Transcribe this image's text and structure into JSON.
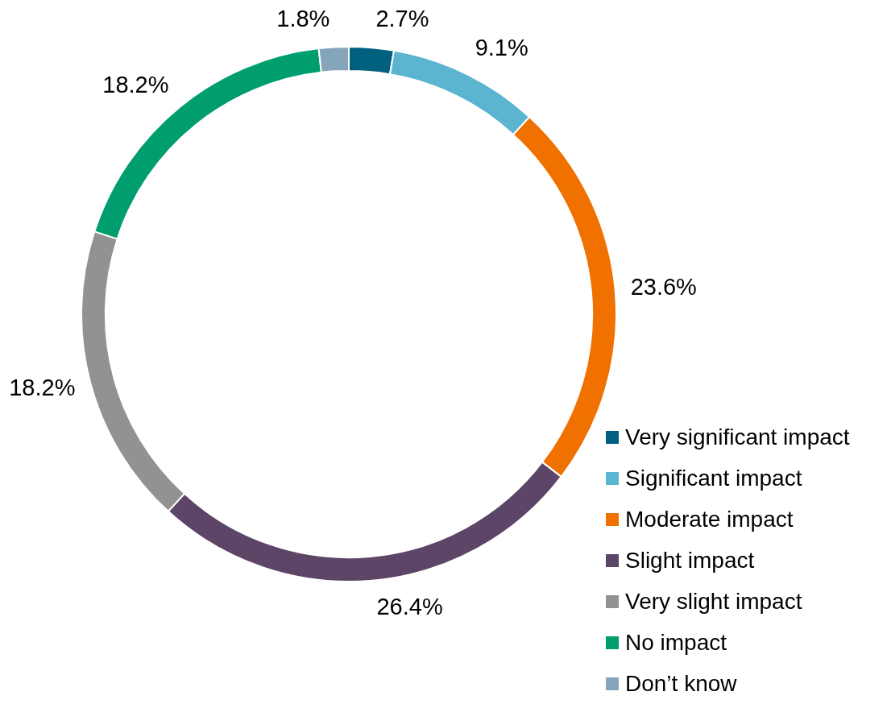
{
  "chart_data": {
    "type": "donut",
    "categories": [
      "Very significant impact",
      "Significant impact",
      "Moderate impact",
      "Slight impact",
      "Very slight impact",
      "No impact",
      "Don’t know"
    ],
    "values": [
      2.7,
      9.1,
      23.6,
      26.4,
      18.2,
      18.2,
      1.8
    ],
    "colors": [
      "#00607f",
      "#5bb5d0",
      "#f07000",
      "#5c4566",
      "#929292",
      "#009e6e",
      "#85a5bb"
    ],
    "value_labels": [
      "2.7%",
      "9.1%",
      "23.6%",
      "26.4%",
      "18.2%",
      "18.2%",
      "1.8%"
    ],
    "legend": "bottom right"
  }
}
